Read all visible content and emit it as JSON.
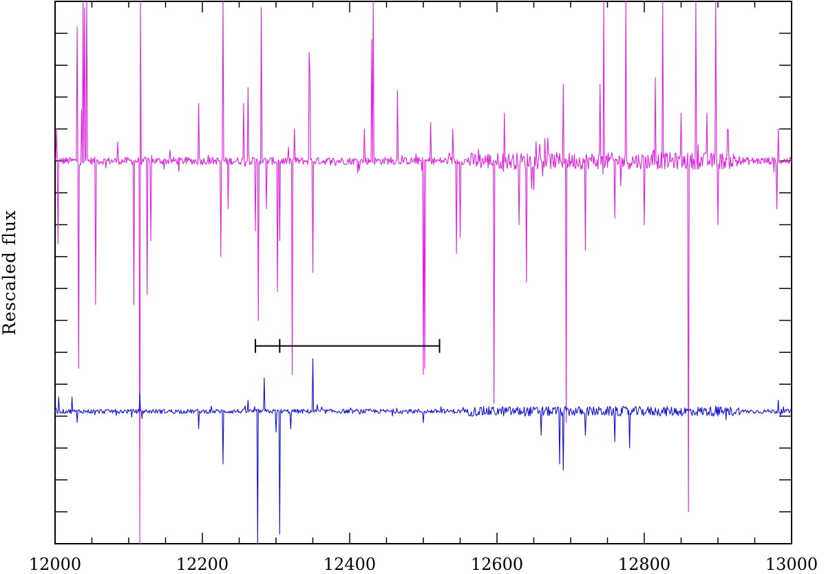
{
  "chart_data": {
    "type": "line",
    "title": "",
    "xlabel": "",
    "ylabel": "Rescaled flux",
    "xlim": [
      12000,
      13000
    ],
    "ylim": [
      0,
      17
    ],
    "x_ticks": [
      12000,
      12200,
      12400,
      12600,
      12800,
      13000
    ],
    "x_tick_labels": [
      "12000",
      "12200",
      "12400",
      "12600",
      "12800",
      "13000"
    ],
    "grid": false,
    "legend": "none",
    "series": [
      {
        "color": "#e020e0",
        "baseline": 12.0,
        "noise": 0.12,
        "features": [
          [
            12002,
            13.0
          ],
          [
            12004,
            9.4
          ],
          [
            12030,
            16.2
          ],
          [
            12032,
            5.5
          ],
          [
            12036,
            13.6
          ],
          [
            12038,
            17.0
          ],
          [
            12040,
            16.8
          ],
          [
            12043,
            17.0
          ],
          [
            12055,
            7.5
          ],
          [
            12085,
            12.6
          ],
          [
            12107,
            7.5
          ],
          [
            12115,
            0.0
          ],
          [
            12116,
            17.0
          ],
          [
            12125,
            7.8
          ],
          [
            12130,
            9.5
          ],
          [
            12195,
            13.8
          ],
          [
            12225,
            9.0
          ],
          [
            12228,
            17.0
          ],
          [
            12235,
            10.5
          ],
          [
            12256,
            13.8
          ],
          [
            12262,
            14.3
          ],
          [
            12272,
            9.8
          ],
          [
            12276,
            7.0
          ],
          [
            12280,
            16.8
          ],
          [
            12287,
            10.5
          ],
          [
            12302,
            7.9
          ],
          [
            12305,
            9.5
          ],
          [
            12322,
            5.3
          ],
          [
            12325,
            13.0
          ],
          [
            12345,
            15.4
          ],
          [
            12346,
            14.8
          ],
          [
            12350,
            8.5
          ],
          [
            12420,
            13.0
          ],
          [
            12430,
            15.8
          ],
          [
            12432,
            17.0
          ],
          [
            12465,
            14.2
          ],
          [
            12500,
            5.3
          ],
          [
            12502,
            5.5
          ],
          [
            12510,
            13.2
          ],
          [
            12540,
            13.0
          ],
          [
            12545,
            9.1
          ],
          [
            12550,
            9.6
          ],
          [
            12596,
            4.4
          ],
          [
            12610,
            13.5
          ],
          [
            12630,
            10.0
          ],
          [
            12640,
            8.2
          ],
          [
            12665,
            12.7
          ],
          [
            12690,
            14.4
          ],
          [
            12694,
            3.8
          ],
          [
            12720,
            9.2
          ],
          [
            12740,
            14.4
          ],
          [
            12745,
            17.0
          ],
          [
            12760,
            10.2
          ],
          [
            12775,
            17.0
          ],
          [
            12800,
            10.0
          ],
          [
            12815,
            14.6
          ],
          [
            12825,
            17.0
          ],
          [
            12850,
            13.5
          ],
          [
            12860,
            1.0
          ],
          [
            12870,
            17.0
          ],
          [
            12885,
            13.5
          ],
          [
            12897,
            17.0
          ],
          [
            12900,
            10.0
          ],
          [
            12913,
            13.0
          ],
          [
            12980,
            10.5
          ],
          [
            12982,
            13.0
          ]
        ]
      },
      {
        "color": "#1010dd",
        "baseline": 4.15,
        "noise": 0.07,
        "features": [
          [
            12005,
            4.6
          ],
          [
            12023,
            4.6
          ],
          [
            12030,
            3.8
          ],
          [
            12115,
            4.7
          ],
          [
            12195,
            3.6
          ],
          [
            12228,
            2.5
          ],
          [
            12262,
            4.5
          ],
          [
            12275,
            0.0
          ],
          [
            12284,
            5.2
          ],
          [
            12300,
            3.5
          ],
          [
            12305,
            0.3
          ],
          [
            12320,
            3.6
          ],
          [
            12350,
            5.8
          ],
          [
            12500,
            3.8
          ],
          [
            12660,
            3.4
          ],
          [
            12685,
            2.5
          ],
          [
            12690,
            2.3
          ],
          [
            12720,
            3.4
          ],
          [
            12760,
            3.2
          ],
          [
            12780,
            3.0
          ],
          [
            12900,
            4.0
          ],
          [
            12982,
            4.5
          ]
        ]
      }
    ],
    "annotations": [
      {
        "type": "bracket",
        "x": [
          12272,
          12305,
          12522
        ],
        "y": 6.2
      }
    ]
  }
}
